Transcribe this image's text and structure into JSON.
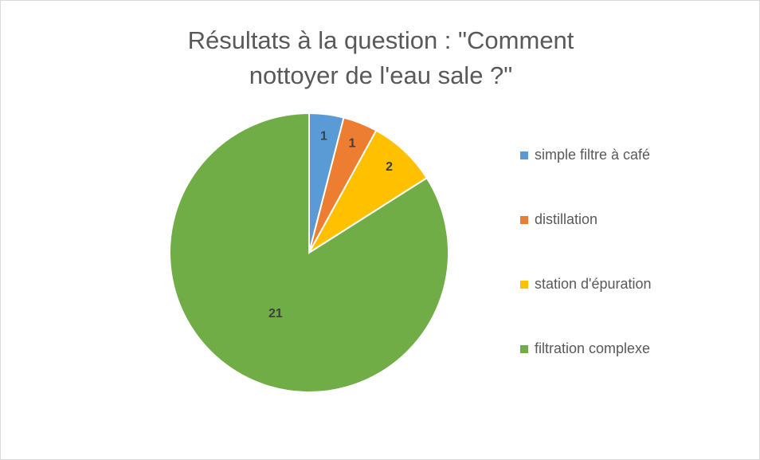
{
  "chart_data": {
    "type": "pie",
    "title": "Résultats à la question : \"Comment nottoyer de l'eau sale ?\"",
    "categories": [
      "simple filtre à café",
      "distillation",
      "station d'épuration",
      "filtration complexe"
    ],
    "values": [
      1,
      1,
      2,
      21
    ],
    "colors": [
      "#5b9bd5",
      "#ed7d31",
      "#ffc000",
      "#70ad47"
    ],
    "legend": "right"
  }
}
